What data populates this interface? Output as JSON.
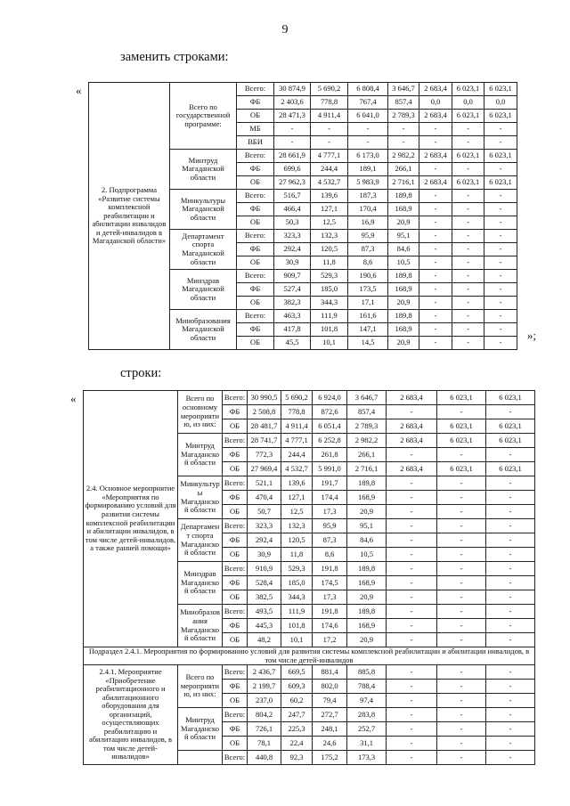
{
  "page": {
    "number": "9"
  },
  "headings": {
    "replace": "заменить строками:",
    "rows": "строки:"
  },
  "quotes": {
    "open": "«",
    "close": "»;"
  },
  "tables": [
    {
      "name": "replacement-rows-table",
      "sections": [
        {
          "type": "block",
          "label": "2. Подпрограмма «Развитие системы комплексной реабилитации и абилитации инвалидов и детей-инвалидов в Магаданской области»",
          "groups": [
            {
              "agency": "Всего по государственной программе:",
              "rows": [
                {
                  "source": "Всего:",
                  "values": [
                    "30 874,9",
                    "5 690,2",
                    "6 808,4",
                    "3 646,7",
                    "2 683,4",
                    "6 023,1",
                    "6 023,1"
                  ]
                },
                {
                  "source": "ФБ",
                  "values": [
                    "2 403,6",
                    "778,8",
                    "767,4",
                    "857,4",
                    "0,0",
                    "0,0",
                    "0,0"
                  ]
                },
                {
                  "source": "ОБ",
                  "values": [
                    "28 471,3",
                    "4 911,4",
                    "6 041,0",
                    "2 789,3",
                    "2 683,4",
                    "6 023,1",
                    "6 023,1"
                  ]
                },
                {
                  "source": "МБ",
                  "values": [
                    "-",
                    "-",
                    "-",
                    "-",
                    "-",
                    "-",
                    "-"
                  ]
                },
                {
                  "source": "ВБИ",
                  "values": [
                    "-",
                    "-",
                    "-",
                    "-",
                    "-",
                    "-",
                    "-"
                  ]
                }
              ]
            },
            {
              "agency": "Минтруд Магаданской области",
              "rows": [
                {
                  "source": "Всего:",
                  "values": [
                    "28 661,9",
                    "4 777,1",
                    "6 173,0",
                    "2 982,2",
                    "2 683,4",
                    "6 023,1",
                    "6 023,1"
                  ]
                },
                {
                  "source": "ФБ",
                  "values": [
                    "699,6",
                    "244,4",
                    "189,1",
                    "266,1",
                    "-",
                    "-",
                    "-"
                  ]
                },
                {
                  "source": "ОБ",
                  "values": [
                    "27 962,3",
                    "4 532,7",
                    "5 983,9",
                    "2 716,1",
                    "2 683,4",
                    "6 023,1",
                    "6 023,1"
                  ]
                }
              ]
            },
            {
              "agency": "Минкультуры Магаданской области",
              "rows": [
                {
                  "source": "Всего:",
                  "values": [
                    "516,7",
                    "139,6",
                    "187,3",
                    "189,8",
                    "-",
                    "-",
                    "-"
                  ]
                },
                {
                  "source": "ФБ",
                  "values": [
                    "466,4",
                    "127,1",
                    "170,4",
                    "168,9",
                    "-",
                    "-",
                    "-"
                  ]
                },
                {
                  "source": "ОБ",
                  "values": [
                    "50,3",
                    "12,5",
                    "16,9",
                    "20,9",
                    "-",
                    "-",
                    "-"
                  ]
                }
              ]
            },
            {
              "agency": "Департамент спорта Магаданской области",
              "rows": [
                {
                  "source": "Всего:",
                  "values": [
                    "323,3",
                    "132,3",
                    "95,9",
                    "95,1",
                    "-",
                    "-",
                    "-"
                  ]
                },
                {
                  "source": "ФБ",
                  "values": [
                    "292,4",
                    "120,5",
                    "87,3",
                    "84,6",
                    "-",
                    "-",
                    "-"
                  ]
                },
                {
                  "source": "ОБ",
                  "values": [
                    "30,9",
                    "11,8",
                    "8,6",
                    "10,5",
                    "-",
                    "-",
                    "-"
                  ]
                }
              ]
            },
            {
              "agency": "Минздрав Магаданской области",
              "rows": [
                {
                  "source": "Всего:",
                  "values": [
                    "909,7",
                    "529,3",
                    "190,6",
                    "189,8",
                    "-",
                    "-",
                    "-"
                  ]
                },
                {
                  "source": "ФБ",
                  "values": [
                    "527,4",
                    "185,0",
                    "173,5",
                    "168,9",
                    "-",
                    "-",
                    "-"
                  ]
                },
                {
                  "source": "ОБ",
                  "values": [
                    "382,3",
                    "344,3",
                    "17,1",
                    "20,9",
                    "-",
                    "-",
                    "-"
                  ]
                }
              ]
            },
            {
              "agency": "Минобразования Магаданской области",
              "rows": [
                {
                  "source": "Всего:",
                  "values": [
                    "463,3",
                    "111,9",
                    "161,6",
                    "189,8",
                    "-",
                    "-",
                    "-"
                  ]
                },
                {
                  "source": "ФБ",
                  "values": [
                    "417,8",
                    "101,8",
                    "147,1",
                    "168,9",
                    "-",
                    "-",
                    "-"
                  ]
                },
                {
                  "source": "ОБ",
                  "values": [
                    "45,5",
                    "10,1",
                    "14,5",
                    "20,9",
                    "-",
                    "-",
                    "-"
                  ]
                }
              ]
            }
          ]
        }
      ]
    },
    {
      "name": "new-rows-table",
      "sections": [
        {
          "type": "block",
          "label": "2.4. Основное мероприятие «Мероприятия по формированию условий для развития системы комплексной реабилитации и абилитации инвалидов, в том числе детей-инвалидов, а также ранней помощи»",
          "groups": [
            {
              "agency": "Всего по основному мероприятию, из них:",
              "rows": [
                {
                  "source": "Всего:",
                  "values": [
                    "30 990,5",
                    "5 690,2",
                    "6 924,0",
                    "3 646,7",
                    "2 683,4",
                    "6 023,1",
                    "6 023,1"
                  ]
                },
                {
                  "source": "ФБ",
                  "values": [
                    "2 508,8",
                    "778,8",
                    "872,6",
                    "857,4",
                    "-",
                    "-",
                    "-"
                  ]
                },
                {
                  "source": "ОБ",
                  "values": [
                    "28 481,7",
                    "4 911,4",
                    "6 051,4",
                    "2 789,3",
                    "2 683,4",
                    "6 023,1",
                    "6 023,1"
                  ]
                }
              ]
            },
            {
              "agency": "Минтруд Магаданской области",
              "rows": [
                {
                  "source": "Всего:",
                  "values": [
                    "28 741,7",
                    "4 777,1",
                    "6 252,8",
                    "2 982,2",
                    "2 683,4",
                    "6 023,1",
                    "6 023,1"
                  ]
                },
                {
                  "source": "ФБ",
                  "values": [
                    "772,3",
                    "244,4",
                    "261,8",
                    "266,1",
                    "-",
                    "-",
                    "-"
                  ]
                },
                {
                  "source": "ОБ",
                  "values": [
                    "27 969,4",
                    "4 532,7",
                    "5 991,0",
                    "2 716,1",
                    "2 683,4",
                    "6 023,1",
                    "6 023,1"
                  ]
                }
              ]
            },
            {
              "agency": "Минкультуры Магаданской области",
              "rows": [
                {
                  "source": "Всего:",
                  "values": [
                    "521,1",
                    "139,6",
                    "191,7",
                    "189,8",
                    "-",
                    "-",
                    "-"
                  ]
                },
                {
                  "source": "ФБ",
                  "values": [
                    "470,4",
                    "127,1",
                    "174,4",
                    "168,9",
                    "-",
                    "-",
                    "-"
                  ]
                },
                {
                  "source": "ОБ",
                  "values": [
                    "50,7",
                    "12,5",
                    "17,3",
                    "20,9",
                    "-",
                    "-",
                    "-"
                  ]
                }
              ]
            },
            {
              "agency": "Департамент спорта Магаданской области",
              "rows": [
                {
                  "source": "Всего:",
                  "values": [
                    "323,3",
                    "132,3",
                    "95,9",
                    "95,1",
                    "-",
                    "-",
                    "-"
                  ]
                },
                {
                  "source": "ФБ",
                  "values": [
                    "292,4",
                    "120,5",
                    "87,3",
                    "84,6",
                    "-",
                    "-",
                    "-"
                  ]
                },
                {
                  "source": "ОБ",
                  "values": [
                    "30,9",
                    "11,8",
                    "8,6",
                    "10,5",
                    "-",
                    "-",
                    "-"
                  ]
                }
              ]
            },
            {
              "agency": "Минздрав Магаданской области",
              "rows": [
                {
                  "source": "Всего:",
                  "values": [
                    "910,9",
                    "529,3",
                    "191,8",
                    "189,8",
                    "-",
                    "-",
                    "-"
                  ]
                },
                {
                  "source": "ФБ",
                  "values": [
                    "528,4",
                    "185,0",
                    "174,5",
                    "168,9",
                    "-",
                    "-",
                    "-"
                  ]
                },
                {
                  "source": "ОБ",
                  "values": [
                    "382,5",
                    "344,3",
                    "17,3",
                    "20,9",
                    "-",
                    "-",
                    "-"
                  ]
                }
              ]
            },
            {
              "agency": "Минобразования Магаданской области",
              "rows": [
                {
                  "source": "Всего:",
                  "values": [
                    "493,5",
                    "111,9",
                    "191,8",
                    "189,8",
                    "-",
                    "-",
                    "-"
                  ]
                },
                {
                  "source": "ФБ",
                  "values": [
                    "445,3",
                    "101,8",
                    "174,6",
                    "168,9",
                    "-",
                    "-",
                    "-"
                  ]
                },
                {
                  "source": "ОБ",
                  "values": [
                    "48,2",
                    "10,1",
                    "17,2",
                    "20,9",
                    "-",
                    "-",
                    "-"
                  ]
                }
              ]
            }
          ]
        },
        {
          "type": "subheader",
          "text": "Подраздел 2.4.1. Мероприятия по формированию условий для развития системы комплексной реабилитации и абилитации инвалидов, в том числе детей-инвалидов"
        },
        {
          "type": "block",
          "label": "2.4.1. Мероприятие «Приобретение реабилитационного и абилитационного оборудования для организаций, осуществляющих реабилитацию и абилитацию инвалидов, в том числе детей-инвалидов»",
          "groups": [
            {
              "agency": "Всего по мероприятию, из них:",
              "rows": [
                {
                  "source": "Всего:",
                  "values": [
                    "2 436,7",
                    "669,5",
                    "881,4",
                    "885,8",
                    "-",
                    "-",
                    "-"
                  ]
                },
                {
                  "source": "ФБ",
                  "values": [
                    "2 199,7",
                    "609,3",
                    "802,0",
                    "788,4",
                    "-",
                    "-",
                    "-"
                  ]
                },
                {
                  "source": "ОБ",
                  "values": [
                    "237,0",
                    "60,2",
                    "79,4",
                    "97,4",
                    "-",
                    "-",
                    "-"
                  ]
                }
              ]
            },
            {
              "agency": "Минтруд Магаданской области",
              "rows": [
                {
                  "source": "Всего:",
                  "values": [
                    "804,2",
                    "247,7",
                    "272,7",
                    "283,8",
                    "-",
                    "-",
                    "-"
                  ]
                },
                {
                  "source": "ФБ",
                  "values": [
                    "726,1",
                    "225,3",
                    "248,1",
                    "252,7",
                    "-",
                    "-",
                    "-"
                  ]
                },
                {
                  "source": "ОБ",
                  "values": [
                    "78,1",
                    "22,4",
                    "24,6",
                    "31,1",
                    "-",
                    "-",
                    "-"
                  ]
                }
              ]
            },
            {
              "agency": "",
              "rows": [
                {
                  "source": "Всего:",
                  "values": [
                    "440,8",
                    "92,3",
                    "175,2",
                    "173,3",
                    "-",
                    "-",
                    "-"
                  ]
                }
              ]
            }
          ]
        }
      ]
    }
  ]
}
